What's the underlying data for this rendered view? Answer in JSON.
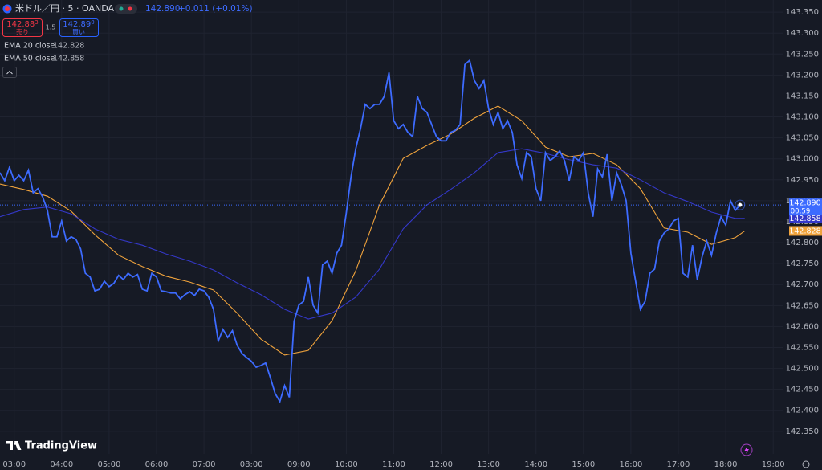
{
  "header": {
    "symbol": "米ドル／円 · 5 · OANDA",
    "price": "142.890",
    "change": "+0.011 (+0.01%)",
    "sell_price": "142.88",
    "sell_sup": "3",
    "sell_label": "売り",
    "spread": "1.5",
    "buy_price": "142.89",
    "buy_sup": "0",
    "buy_label": "買い",
    "brand": "TradingView"
  },
  "chart_data": {
    "type": "line",
    "xlim": [
      2.7,
      19.2
    ],
    "xticks": [
      {
        "value": 3,
        "label": "03:00"
      },
      {
        "value": 4,
        "label": "04:00"
      },
      {
        "value": 5,
        "label": "05:00"
      },
      {
        "value": 6,
        "label": "06:00"
      },
      {
        "value": 7,
        "label": "07:00"
      },
      {
        "value": 8,
        "label": "08:00"
      },
      {
        "value": 9,
        "label": "09:00"
      },
      {
        "value": 10,
        "label": "10:00"
      },
      {
        "value": 11,
        "label": "11:00"
      },
      {
        "value": 12,
        "label": "12:00"
      },
      {
        "value": 13,
        "label": "13:00"
      },
      {
        "value": 14,
        "label": "14:00"
      },
      {
        "value": 15,
        "label": "15:00"
      },
      {
        "value": 16,
        "label": "16:00"
      },
      {
        "value": 17,
        "label": "17:00"
      },
      {
        "value": 18,
        "label": "18:00"
      },
      {
        "value": 19,
        "label": "19:00"
      }
    ],
    "ylim": [
      142.296,
      143.379
    ],
    "yticks": [
      {
        "value": 143.35,
        "label": "143.350"
      },
      {
        "value": 143.3,
        "label": "143.300"
      },
      {
        "value": 143.25,
        "label": "143.250"
      },
      {
        "value": 143.2,
        "label": "143.200"
      },
      {
        "value": 143.15,
        "label": "143.150"
      },
      {
        "value": 143.1,
        "label": "143.100"
      },
      {
        "value": 143.05,
        "label": "143.050"
      },
      {
        "value": 143.0,
        "label": "143.000"
      },
      {
        "value": 142.95,
        "label": "142.950"
      },
      {
        "value": 142.9,
        "label": "142.900"
      },
      {
        "value": 142.85,
        "label": "142.850"
      },
      {
        "value": 142.8,
        "label": "142.800"
      },
      {
        "value": 142.75,
        "label": "142.750"
      },
      {
        "value": 142.7,
        "label": "142.700"
      },
      {
        "value": 142.65,
        "label": "142.650"
      },
      {
        "value": 142.6,
        "label": "142.600"
      },
      {
        "value": 142.55,
        "label": "142.550"
      },
      {
        "value": 142.5,
        "label": "142.500"
      },
      {
        "value": 142.45,
        "label": "142.450"
      },
      {
        "value": 142.4,
        "label": "142.400"
      },
      {
        "value": 142.35,
        "label": "142.350"
      }
    ],
    "grid": true,
    "series": [
      {
        "color": "#3d6bff",
        "axis_label": "142.890",
        "countdown": "00:59",
        "x": [
          2.7,
          2.8,
          2.9,
          3.0,
          3.1,
          3.2,
          3.3,
          3.4,
          3.5,
          3.6,
          3.7,
          3.8,
          3.9,
          4.0,
          4.1,
          4.2,
          4.3,
          4.4,
          4.5,
          4.6,
          4.7,
          4.8,
          4.9,
          5.0,
          5.1,
          5.2,
          5.3,
          5.4,
          5.5,
          5.6,
          5.7,
          5.8,
          5.9,
          6.0,
          6.1,
          6.2,
          6.3,
          6.4,
          6.5,
          6.6,
          6.7,
          6.8,
          6.9,
          7.0,
          7.1,
          7.2,
          7.3,
          7.4,
          7.5,
          7.6,
          7.7,
          7.8,
          7.9,
          8.0,
          8.1,
          8.2,
          8.3,
          8.4,
          8.5,
          8.6,
          8.7,
          8.8,
          8.9,
          9.0,
          9.1,
          9.2,
          9.3,
          9.4,
          9.5,
          9.6,
          9.7,
          9.8,
          9.9,
          10.0,
          10.1,
          10.2,
          10.3,
          10.4,
          10.5,
          10.6,
          10.7,
          10.8,
          10.9,
          11.0,
          11.1,
          11.2,
          11.3,
          11.4,
          11.5,
          11.6,
          11.7,
          11.8,
          11.9,
          12.0,
          12.1,
          12.2,
          12.3,
          12.4,
          12.5,
          12.6,
          12.7,
          12.8,
          12.9,
          13.0,
          13.1,
          13.2,
          13.3,
          13.4,
          13.5,
          13.6,
          13.7,
          13.8,
          13.9,
          14.0,
          14.1,
          14.2,
          14.3,
          14.4,
          14.5,
          14.6,
          14.7,
          14.8,
          14.9,
          15.0,
          15.1,
          15.2,
          15.3,
          15.4,
          15.5,
          15.6,
          15.7,
          15.8,
          15.9,
          16.0,
          16.1,
          16.2,
          16.3,
          16.4,
          16.5,
          16.6,
          16.7,
          16.8,
          16.9,
          17.0,
          17.1,
          17.2,
          17.3,
          17.4,
          17.5,
          17.6,
          17.7,
          17.8,
          17.9,
          18.0,
          18.1,
          18.2,
          18.3
        ],
        "values": [
          142.967,
          142.948,
          142.98,
          142.948,
          142.961,
          142.948,
          142.973,
          142.919,
          142.929,
          142.909,
          142.877,
          142.814,
          142.814,
          142.852,
          142.804,
          142.814,
          142.808,
          142.785,
          142.727,
          142.718,
          142.685,
          142.689,
          142.708,
          142.695,
          142.703,
          142.722,
          142.712,
          142.727,
          142.718,
          142.724,
          142.689,
          142.685,
          142.727,
          142.718,
          142.685,
          142.683,
          142.68,
          142.68,
          142.666,
          142.676,
          142.683,
          142.674,
          142.689,
          142.685,
          142.67,
          142.641,
          142.565,
          142.593,
          142.574,
          142.59,
          142.555,
          142.536,
          142.526,
          142.517,
          142.503,
          142.507,
          142.513,
          142.478,
          142.44,
          142.421,
          142.459,
          142.431,
          142.613,
          142.651,
          142.66,
          142.718,
          142.651,
          142.632,
          142.747,
          142.756,
          142.727,
          142.775,
          142.794,
          142.871,
          142.957,
          143.024,
          143.072,
          143.13,
          143.12,
          143.13,
          143.13,
          143.149,
          143.206,
          143.091,
          143.072,
          143.082,
          143.063,
          143.053,
          143.149,
          143.12,
          143.111,
          143.082,
          143.053,
          143.043,
          143.043,
          143.063,
          143.068,
          143.082,
          143.225,
          143.235,
          143.187,
          143.168,
          143.187,
          143.12,
          143.082,
          143.111,
          143.072,
          143.091,
          143.063,
          142.986,
          142.953,
          143.015,
          143.005,
          142.929,
          142.9,
          143.015,
          142.996,
          143.005,
          143.019,
          142.996,
          142.948,
          143.005,
          142.996,
          143.015,
          142.919,
          142.862,
          142.976,
          142.957,
          143.011,
          142.9,
          142.967,
          142.938,
          142.9,
          142.775,
          142.708,
          142.641,
          142.66,
          142.727,
          142.737,
          142.804,
          142.823,
          142.833,
          142.852,
          142.858,
          142.727,
          142.718,
          142.794,
          142.712,
          142.766,
          142.804,
          142.77,
          142.823,
          142.862,
          142.842,
          142.9,
          142.877,
          142.89
        ]
      },
      {
        "name": "EMA 20 close",
        "color": "#f0a33c",
        "legend_value": "142.828",
        "axis_label": "142.828",
        "x": [
          2.7,
          3.2,
          3.7,
          4.2,
          4.7,
          5.2,
          5.7,
          6.2,
          6.7,
          7.2,
          7.7,
          8.2,
          8.7,
          9.2,
          9.7,
          10.2,
          10.7,
          11.2,
          11.7,
          12.2,
          12.7,
          13.2,
          13.7,
          14.2,
          14.7,
          15.2,
          15.7,
          16.2,
          16.7,
          17.2,
          17.7,
          18.2,
          18.4
        ],
        "values": [
          142.94,
          142.927,
          142.911,
          142.875,
          142.819,
          142.77,
          142.743,
          142.72,
          142.706,
          142.687,
          142.632,
          142.57,
          142.532,
          142.543,
          142.614,
          142.733,
          142.89,
          143.001,
          143.032,
          143.059,
          143.097,
          143.126,
          143.091,
          143.028,
          143.005,
          143.013,
          142.986,
          142.929,
          142.835,
          142.825,
          142.796,
          142.812,
          142.828
        ]
      },
      {
        "name": "EMA 50 close",
        "color": "#3438c8",
        "legend_value": "142.858",
        "axis_label": "142.858",
        "x": [
          2.7,
          3.2,
          3.7,
          4.2,
          4.7,
          5.2,
          5.7,
          6.2,
          6.7,
          7.2,
          7.7,
          8.2,
          8.7,
          9.2,
          9.7,
          10.2,
          10.7,
          11.2,
          11.7,
          12.2,
          12.7,
          13.2,
          13.7,
          14.2,
          14.7,
          15.2,
          15.7,
          16.2,
          16.7,
          17.2,
          17.7,
          18.2,
          18.4
        ],
        "values": [
          142.862,
          142.879,
          142.885,
          142.869,
          142.833,
          142.808,
          142.794,
          142.773,
          142.756,
          142.735,
          142.704,
          142.676,
          142.641,
          142.618,
          142.632,
          142.67,
          142.737,
          142.833,
          142.89,
          142.927,
          142.967,
          143.015,
          143.024,
          143.013,
          142.998,
          142.986,
          142.978,
          142.95,
          142.919,
          142.898,
          142.873,
          142.858,
          142.858
        ]
      }
    ]
  }
}
